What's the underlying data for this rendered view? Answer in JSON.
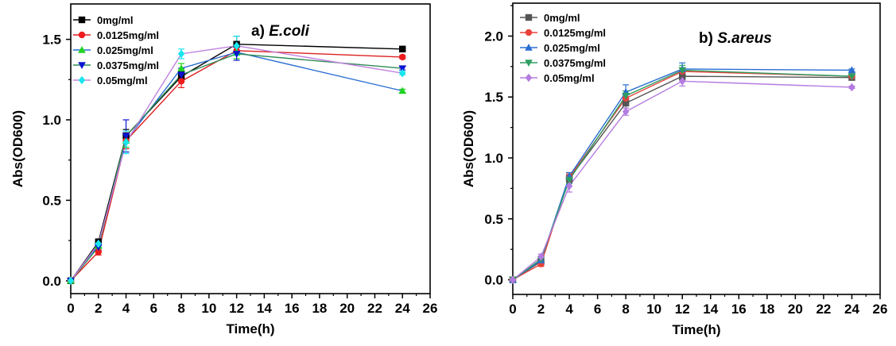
{
  "chart_data": [
    {
      "type": "line",
      "panel": "a)",
      "organism": "E.coli",
      "xlabel": "Time(h)",
      "ylabel": "Abs(OD600)",
      "xlim": [
        0,
        26
      ],
      "ylim": [
        -0.08,
        1.72
      ],
      "xticks": [
        0,
        2,
        4,
        6,
        8,
        10,
        12,
        14,
        16,
        18,
        20,
        22,
        24,
        26
      ],
      "yticks": [
        0.0,
        0.5,
        1.0,
        1.5
      ],
      "ytick_labels": [
        "0.0",
        "0.5",
        "1.0",
        "1.5"
      ],
      "grid": false,
      "legend_position": "top-left",
      "x": [
        0,
        2,
        4,
        8,
        12,
        24
      ],
      "series": [
        {
          "name": "0mg/ml",
          "color": "#000000",
          "marker": "square",
          "values": [
            0.0,
            0.24,
            0.9,
            1.27,
            1.47,
            1.44
          ],
          "errors": [
            0.01,
            0.02,
            0.04,
            0.03,
            0.05,
            0.01
          ]
        },
        {
          "name": "0.0125mg/ml",
          "color": "#ee1c1c",
          "marker": "circle",
          "values": [
            0.0,
            0.18,
            0.87,
            1.24,
            1.43,
            1.39
          ],
          "errors": [
            0.01,
            0.02,
            0.05,
            0.04,
            0.03,
            0.01
          ]
        },
        {
          "name": "0.025mg/ml",
          "color": "#1fd41f",
          "marker": "triangle-up",
          "values": [
            0.0,
            0.22,
            0.87,
            1.32,
            1.42,
            1.18
          ],
          "errors": [
            0.01,
            0.02,
            0.04,
            0.03,
            0.04,
            0.01
          ]
        },
        {
          "name": "0.0375mg/ml",
          "color": "#0a14d2",
          "marker": "triangle-down",
          "values": [
            0.0,
            0.21,
            0.9,
            1.28,
            1.41,
            1.32
          ],
          "errors": [
            0.01,
            0.02,
            0.1,
            0.04,
            0.04,
            0.01
          ]
        },
        {
          "name": "0.05mg/ml",
          "color": "#18e6ee",
          "marker": "diamond",
          "values": [
            0.0,
            0.23,
            0.86,
            1.41,
            1.46,
            1.29
          ],
          "errors": [
            0.01,
            0.02,
            0.07,
            0.03,
            0.06,
            0.01
          ]
        }
      ],
      "line_colors": [
        "#000000",
        "#dd2020",
        "#2a6ed2",
        "#2e8b57",
        "#c080e0"
      ]
    },
    {
      "type": "line",
      "panel": "b)",
      "organism": "S.areus",
      "xlabel": "Time(h)",
      "ylabel": "Abs(OD600)",
      "xlim": [
        0,
        26
      ],
      "ylim": [
        -0.12,
        2.27
      ],
      "xticks": [
        0,
        2,
        4,
        6,
        8,
        10,
        12,
        14,
        16,
        18,
        20,
        22,
        24,
        26
      ],
      "yticks": [
        0.0,
        0.5,
        1.0,
        1.5,
        2.0
      ],
      "ytick_labels": [
        "0.0",
        "0.5",
        "1.0",
        "1.5",
        "2.0"
      ],
      "grid": false,
      "legend_position": "top-left",
      "x": [
        0,
        2,
        4,
        8,
        12,
        24
      ],
      "series": [
        {
          "name": "0mg/ml",
          "color": "#555555",
          "marker": "square",
          "values": [
            0.0,
            0.15,
            0.83,
            1.45,
            1.67,
            1.66
          ],
          "errors": [
            0.01,
            0.02,
            0.03,
            0.04,
            0.03,
            0.01
          ]
        },
        {
          "name": "0.0125mg/ml",
          "color": "#e8423a",
          "marker": "circle",
          "values": [
            0.0,
            0.13,
            0.84,
            1.49,
            1.71,
            1.67
          ],
          "errors": [
            0.01,
            0.02,
            0.03,
            0.04,
            0.03,
            0.01
          ]
        },
        {
          "name": "0.025mg/ml",
          "color": "#2a6ed2",
          "marker": "triangle-up",
          "values": [
            0.0,
            0.16,
            0.85,
            1.54,
            1.73,
            1.72
          ],
          "errors": [
            0.01,
            0.02,
            0.03,
            0.06,
            0.05,
            0.01
          ]
        },
        {
          "name": "0.0375mg/ml",
          "color": "#2e9e62",
          "marker": "triangle-down",
          "values": [
            0.0,
            0.17,
            0.82,
            1.51,
            1.72,
            1.67
          ],
          "errors": [
            0.01,
            0.02,
            0.03,
            0.04,
            0.04,
            0.01
          ]
        },
        {
          "name": "0.05mg/ml",
          "color": "#b47be0",
          "marker": "diamond",
          "values": [
            0.0,
            0.19,
            0.77,
            1.38,
            1.63,
            1.58
          ],
          "errors": [
            0.01,
            0.02,
            0.05,
            0.03,
            0.04,
            0.01
          ]
        }
      ],
      "line_colors": [
        "#555555",
        "#e8423a",
        "#2a6ed2",
        "#2e9e62",
        "#b47be0"
      ]
    }
  ]
}
